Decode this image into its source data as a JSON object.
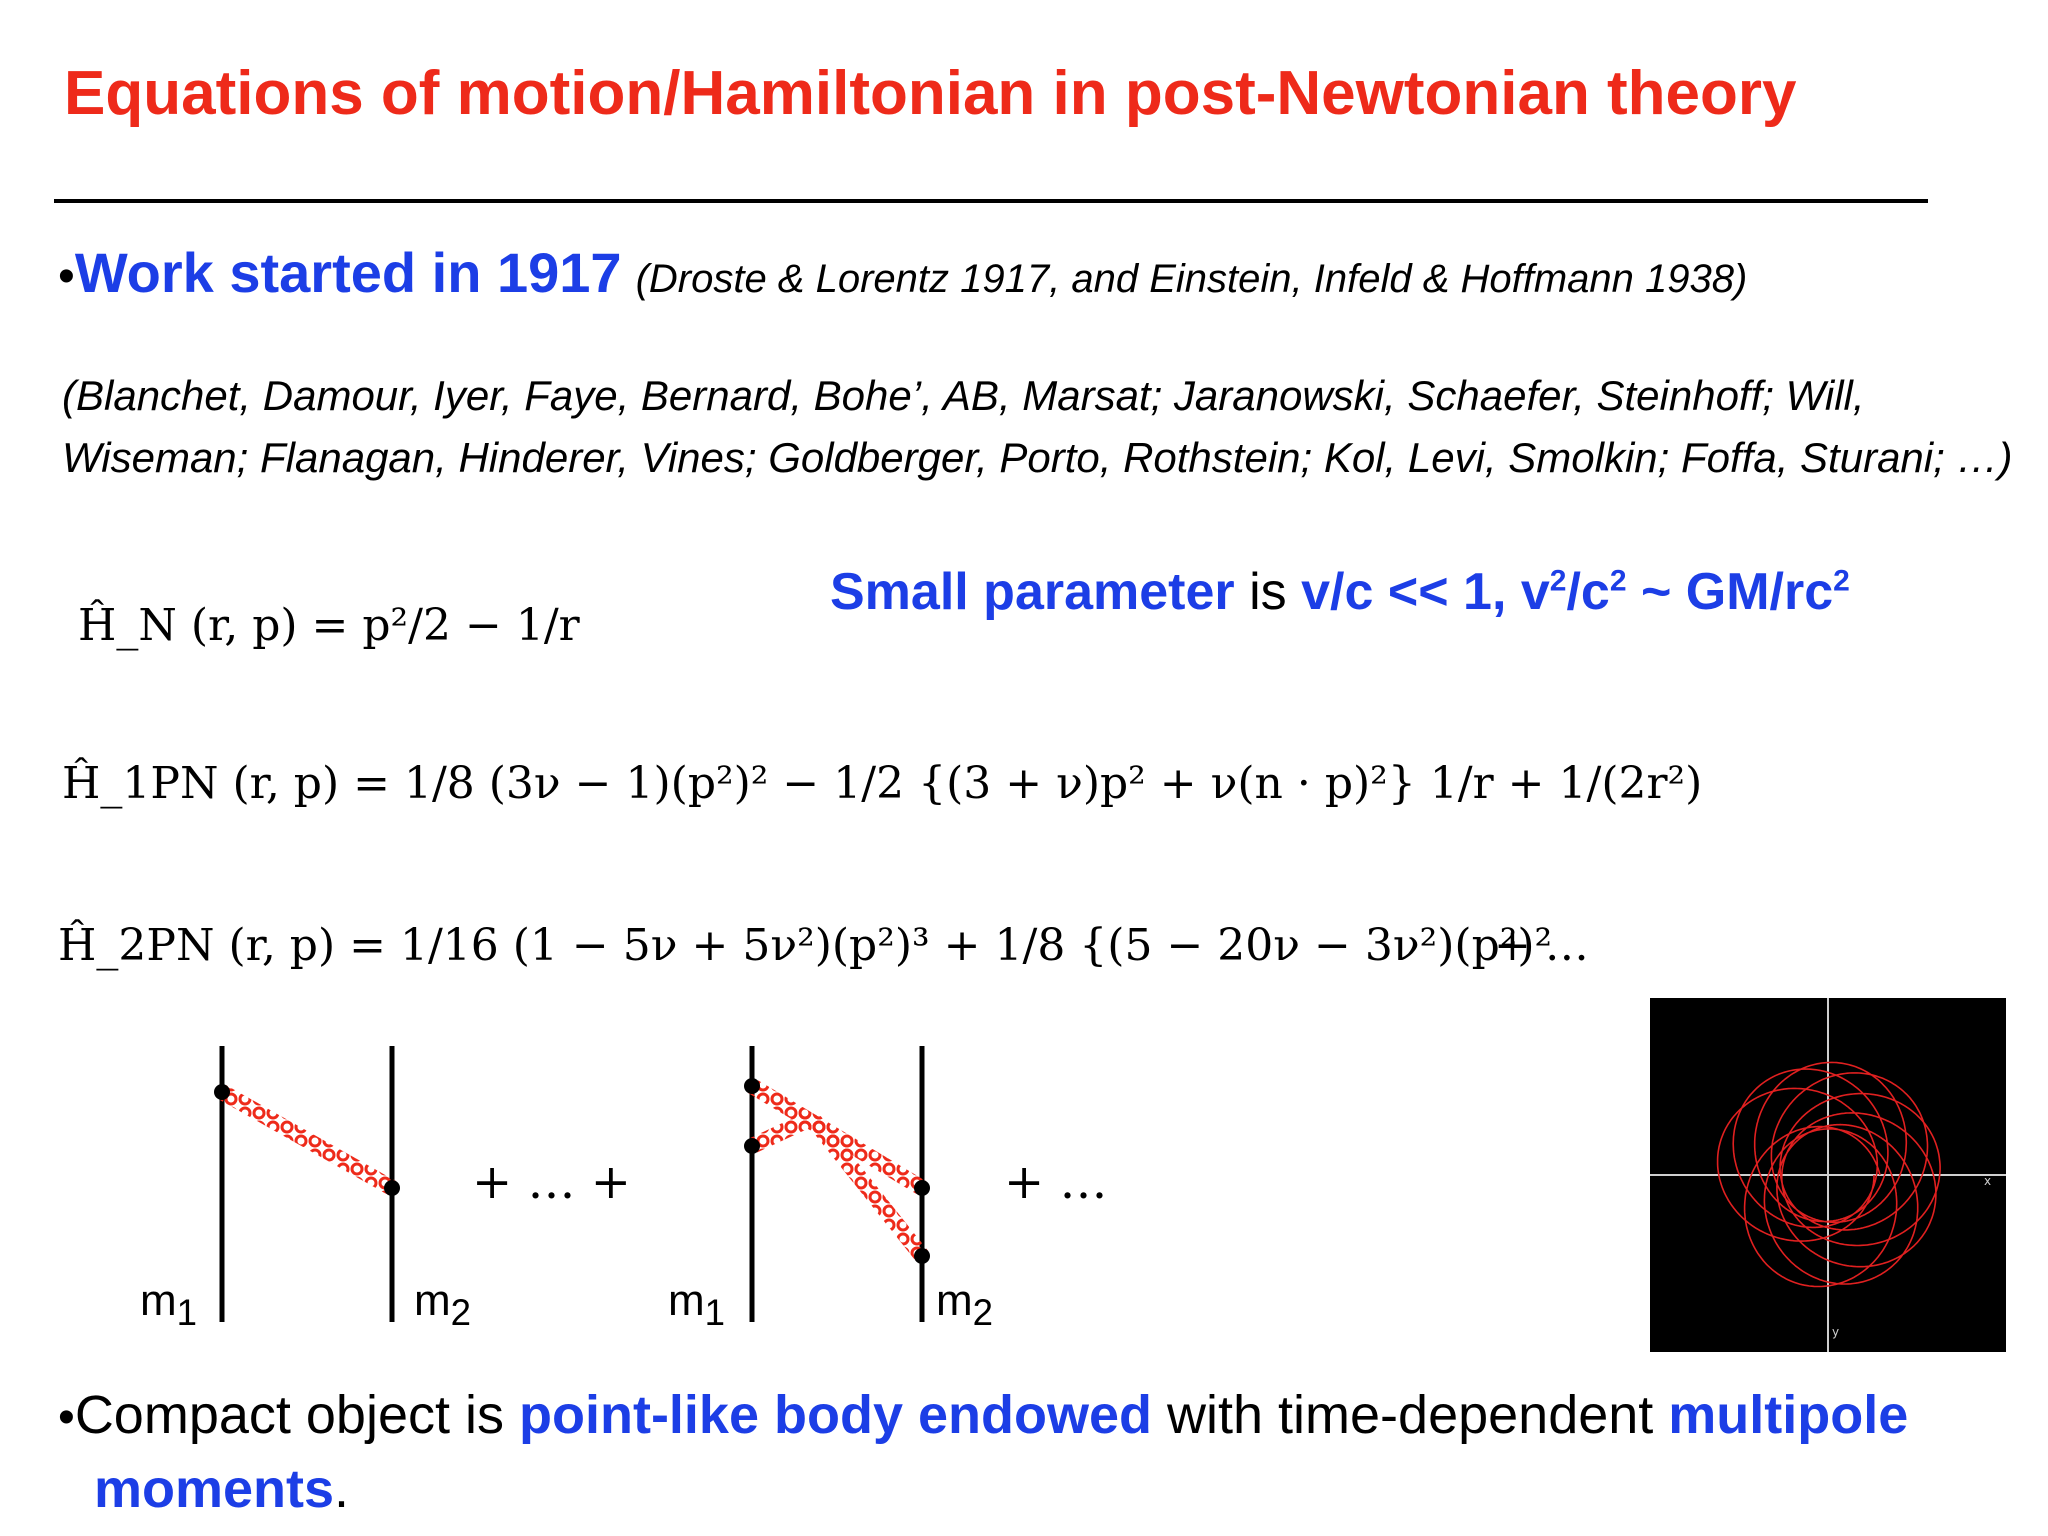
{
  "slide": {
    "title": "Equations of motion/Hamiltonian in post-Newtonian theory",
    "bullet1": {
      "main": "Work started in 1917",
      "ref": "(Droste & Lorentz 1917, and Einstein, Infeld & Hoffmann 1938)"
    },
    "authors_line1": "(Blanchet, Damour, Iyer, Faye, Bernard, Bohe’, AB, Marsat; Jaranowski, Schaefer, Steinhoff;  Will,",
    "authors_line2": "Wiseman; Flanagan, Hinderer, Vines; Goldberger, Porto, Rothstein; Kol, Levi, Smolkin; Foffa, Sturani; …)",
    "small_param": {
      "label": "Small parameter",
      "is": " is ",
      "expr_a": "v/c << 1, v",
      "sup1": "2",
      "expr_b": "/c",
      "sup2": "2",
      "expr_c": " ~ GM/rc",
      "sup3": "2"
    },
    "equations": {
      "hn": "Ĥ_N (r, p) = p²/2 − 1/r",
      "h1pn": "Ĥ_1PN (r, p) = 1/8 (3ν − 1)(p²)² − 1/2 {(3 + ν)p² + ν(n · p)²} 1/r + 1/(2r²)",
      "h2pn": "Ĥ_2PN (r, p) = 1/16 (1 − 5ν + 5ν²)(p²)³ + 1/8 {(5 − 20ν − 3ν²)(p²)²",
      "h2pn_tail": "+ …"
    },
    "diagrams": {
      "m1": "m",
      "m1_sub": "1",
      "m2": "m",
      "m2_sub": "2",
      "plus_mid": "+ … +",
      "plus_end": "+ …"
    },
    "orbit": {
      "axis_x": "x",
      "axis_y": "y"
    },
    "bullet2": {
      "pre": "Compact object is ",
      "hl1": "point-like body endowed",
      "mid": " with time-dependent ",
      "hl2": "multipole",
      "hl3": "moments",
      "end": "."
    },
    "colors": {
      "title": "#ee2a1a",
      "highlight": "#1c3ee6",
      "graviton": "#ee2a1a",
      "orbit": "#e02020"
    }
  }
}
